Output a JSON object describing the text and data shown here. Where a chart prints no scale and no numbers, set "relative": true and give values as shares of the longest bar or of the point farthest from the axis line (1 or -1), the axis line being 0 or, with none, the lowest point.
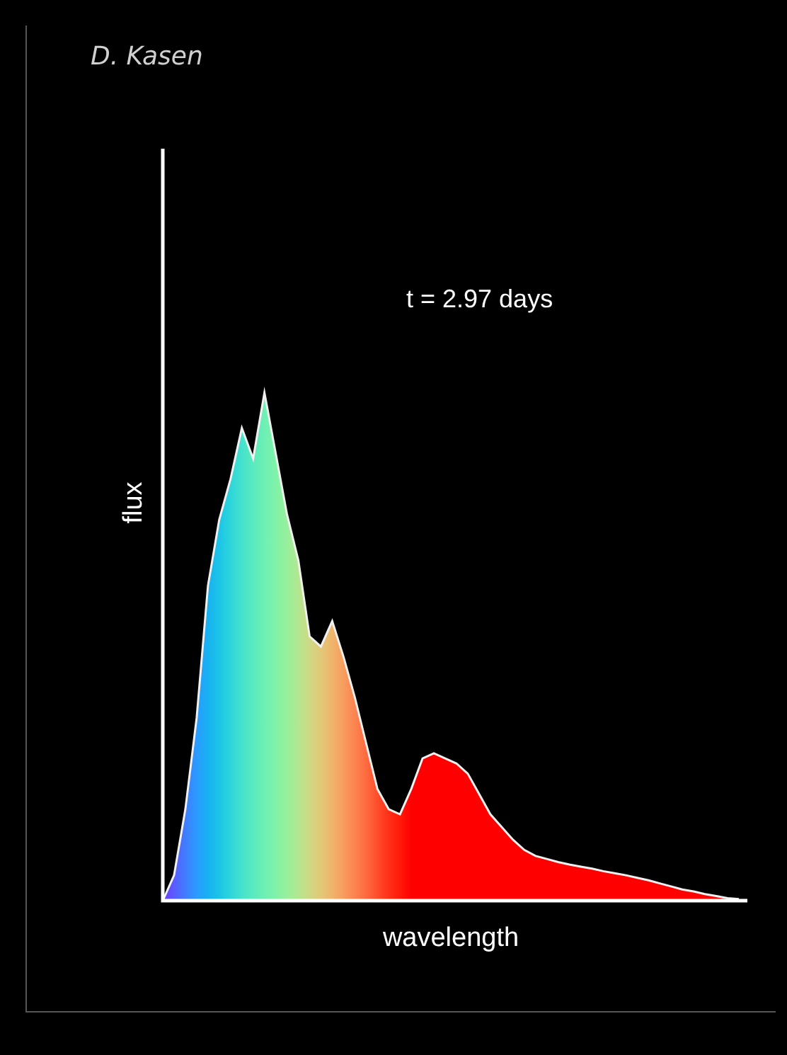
{
  "chart_data": {
    "type": "area",
    "relative": true,
    "color": "#f0f0f0",
    "xlabel": "wavelength",
    "ylabel": "flux",
    "annotations": [
      "D. Kasen",
      "t = 2.97 days"
    ],
    "categories": [
      null,
      null,
      null,
      null,
      null,
      null,
      null,
      null,
      null,
      null,
      null,
      null,
      null,
      null,
      null,
      null,
      null,
      null,
      null,
      null,
      null,
      null,
      null,
      null,
      null,
      null,
      null,
      null,
      null,
      null,
      null,
      null,
      null,
      null,
      null,
      null,
      null,
      null,
      null,
      null,
      null,
      null,
      null,
      null,
      null,
      null,
      null,
      null,
      null,
      null,
      null,
      null
    ],
    "values": [
      0,
      0.05,
      0.18,
      0.36,
      0.62,
      0.75,
      0.83,
      0.93,
      0.87,
      1,
      0.88,
      0.76,
      0.67,
      0.52,
      0.5,
      0.55,
      0.48,
      0.4,
      0.31,
      0.22,
      0.18,
      0.17,
      0.22,
      0.28,
      0.29,
      0.28,
      0.27,
      0.25,
      0.21,
      0.17,
      0.145,
      0.12,
      0.1,
      0.088,
      0.082,
      0.076,
      0.071,
      0.067,
      0.063,
      0.058,
      0.054,
      0.05,
      0.045,
      0.04,
      0.034,
      0.028,
      0.022,
      0.018,
      0.013,
      0.009,
      0.005,
      0.003
    ],
    "colors": [
      "#6a3cff",
      "#5a5cff",
      "#3f7dff",
      "#2a9bff",
      "#18b2f0",
      "#1cc4e6",
      "#2ed6da",
      "#45e2cc",
      "#5aeabe",
      "#6ef0b4",
      "#80f2a8",
      "#98ef9c",
      "#b4e690",
      "#cfd884",
      "#e2c878",
      "#f0b46c",
      "#f89c5e",
      "#fc8450",
      "#fe6a40",
      "#ff4e2c",
      "#ff3018",
      "#ff1a0a",
      "#ff0000",
      "#ff0000",
      "#ff0000",
      "#ff0000",
      "#ff0000",
      "#ff0000",
      "#ff0000",
      "#ff0000",
      "#ff0000",
      "#ff0000",
      "#ff0000",
      "#ff0000",
      "#ff0000",
      "#ff0000",
      "#ff0000",
      "#ff0000",
      "#ff0000",
      "#ff0000",
      "#ff0000",
      "#ff0000",
      "#ff0000",
      "#ff0000",
      "#ff0000",
      "#ff0000",
      "#ff0000",
      "#ff0000",
      "#ff0000",
      "#ff0000",
      "#ff0000",
      "#ff0000"
    ]
  }
}
